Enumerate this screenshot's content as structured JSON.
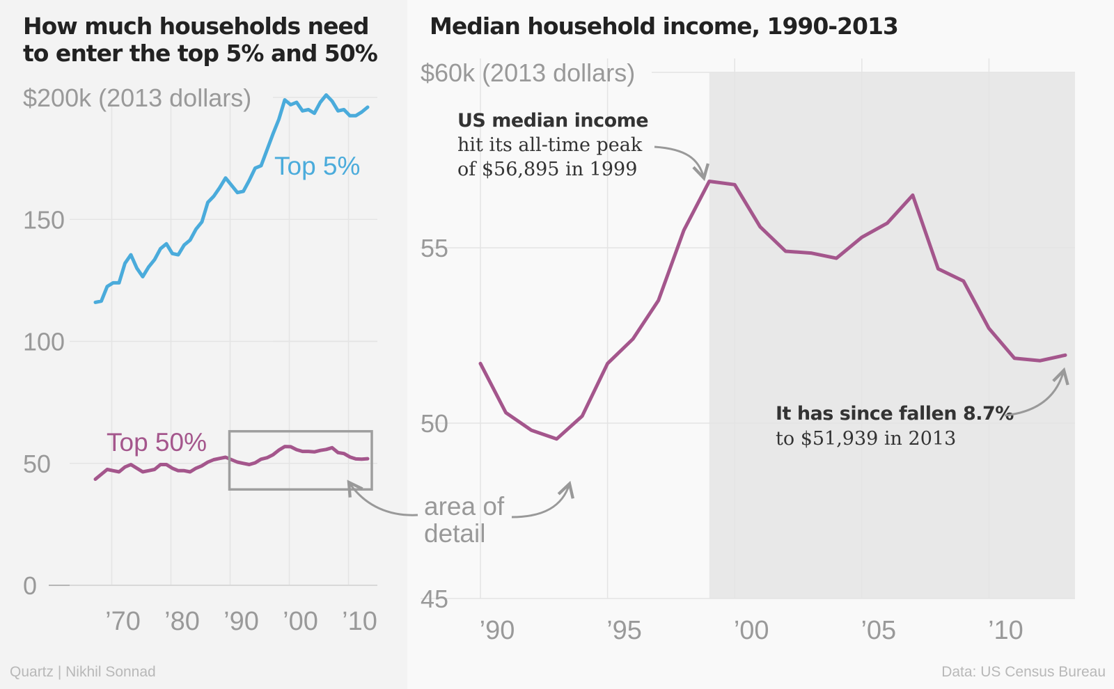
{
  "footer": {
    "credit": "Quartz | Nikhil Sonnad",
    "source": "Data: US Census Bureau"
  },
  "colors": {
    "top5": "#4aabdb",
    "top50": "#a4568c",
    "median": "#a4568c",
    "shade": "#e8e8e8",
    "grid": "#e4e4e4",
    "axis_text": "#999999",
    "annotation_text": "#333333",
    "arrow": "#999999"
  },
  "chart_data": [
    {
      "type": "line",
      "title": "How much households need to enter the top 5% and 50%",
      "y_unit_label": "$200k (2013 dollars)",
      "xlim": [
        1967,
        2013
      ],
      "ylim": [
        0,
        200
      ],
      "yticks": [
        {
          "value": 0,
          "label": "0"
        },
        {
          "value": 50,
          "label": "50"
        },
        {
          "value": 100,
          "label": "100"
        },
        {
          "value": 150,
          "label": "150"
        },
        {
          "value": 200,
          "label": "$200k (2013 dollars)"
        }
      ],
      "xticks": [
        {
          "value": 1970,
          "label": "’70"
        },
        {
          "value": 1980,
          "label": "’80"
        },
        {
          "value": 1990,
          "label": "’90"
        },
        {
          "value": 2000,
          "label": "’00"
        },
        {
          "value": 2010,
          "label": "’10"
        }
      ],
      "grid": true,
      "x": [
        1967,
        1968,
        1969,
        1970,
        1971,
        1972,
        1973,
        1974,
        1975,
        1976,
        1977,
        1978,
        1979,
        1980,
        1981,
        1982,
        1983,
        1984,
        1985,
        1986,
        1987,
        1988,
        1989,
        1990,
        1991,
        1992,
        1993,
        1994,
        1995,
        1996,
        1997,
        1998,
        1999,
        2000,
        2001,
        2002,
        2003,
        2004,
        2005,
        2006,
        2007,
        2008,
        2009,
        2010,
        2011,
        2012,
        2013
      ],
      "series": [
        {
          "name": "Top 5%",
          "color_key": "top5",
          "values": [
            116,
            116.5,
            122.5,
            124,
            124,
            132,
            135.5,
            130,
            126.5,
            130.5,
            133.5,
            138,
            140,
            136,
            135.5,
            139.5,
            141.5,
            146,
            149,
            157,
            159.5,
            163,
            167,
            164,
            161,
            161.5,
            166,
            171,
            172,
            178.5,
            185,
            191,
            199,
            197,
            198,
            194.5,
            195,
            193.5,
            198,
            201,
            198.5,
            194.5,
            195,
            192.5,
            192.5,
            194,
            196
          ]
        },
        {
          "name": "Top 50%",
          "color_key": "top50",
          "values": [
            43.5,
            45.5,
            47.5,
            47,
            46.5,
            48.5,
            49.5,
            48,
            46.5,
            47,
            47.5,
            49.5,
            49.5,
            48,
            47,
            47,
            46.5,
            48,
            49,
            50.5,
            51.5,
            52,
            52.5,
            51.5,
            50.5,
            50,
            49.5,
            50.2,
            51.7,
            52.3,
            53.5,
            55.4,
            56.9,
            56.8,
            55.6,
            54.9,
            54.9,
            54.7,
            55.3,
            55.7,
            56.4,
            54.4,
            54,
            52.6,
            51.8,
            51.7,
            51.9
          ]
        }
      ],
      "detail_box": {
        "x_range": [
          1990,
          2013
        ],
        "y_range": [
          45,
          60
        ]
      },
      "annotations": {
        "detail_label": [
          "area of",
          "detail"
        ]
      }
    },
    {
      "type": "line",
      "title": "Median household income, 1990-2013",
      "y_unit_label": "$60k (2013 dollars)",
      "xlim": [
        1990,
        2013
      ],
      "ylim": [
        45,
        60
      ],
      "yticks": [
        {
          "value": 45,
          "label": "45"
        },
        {
          "value": 50,
          "label": "50"
        },
        {
          "value": 55,
          "label": "55"
        },
        {
          "value": 60,
          "label": "$60k (2013 dollars)"
        }
      ],
      "xticks": [
        {
          "value": 1990,
          "label": "’90"
        },
        {
          "value": 1995,
          "label": "’95"
        },
        {
          "value": 2000,
          "label": "’00"
        },
        {
          "value": 2005,
          "label": "’05"
        },
        {
          "value": 2010,
          "label": "’10"
        }
      ],
      "grid": true,
      "shaded_range": [
        1999,
        2013
      ],
      "x": [
        1990,
        1991,
        1992,
        1993,
        1994,
        1995,
        1996,
        1997,
        1998,
        1999,
        2000,
        2001,
        2002,
        2003,
        2004,
        2005,
        2006,
        2007,
        2008,
        2009,
        2010,
        2011,
        2012,
        2013
      ],
      "series": [
        {
          "name": "US median income",
          "color_key": "median",
          "values": [
            51.7,
            50.3,
            49.8,
            49.55,
            50.2,
            51.7,
            52.4,
            53.5,
            55.5,
            56.895,
            56.8,
            55.6,
            54.9,
            54.85,
            54.7,
            55.3,
            55.7,
            56.5,
            54.4,
            54.05,
            52.7,
            51.85,
            51.78,
            51.939
          ]
        }
      ],
      "annotations": {
        "peak": {
          "bold": "US median income",
          "lines": [
            "hit its all-time peak",
            "of $56,895 in 1999"
          ]
        },
        "fall": {
          "bold": "It has since fallen 8.7%",
          "lines": [
            "to $51,939 in 2013"
          ]
        }
      }
    }
  ]
}
